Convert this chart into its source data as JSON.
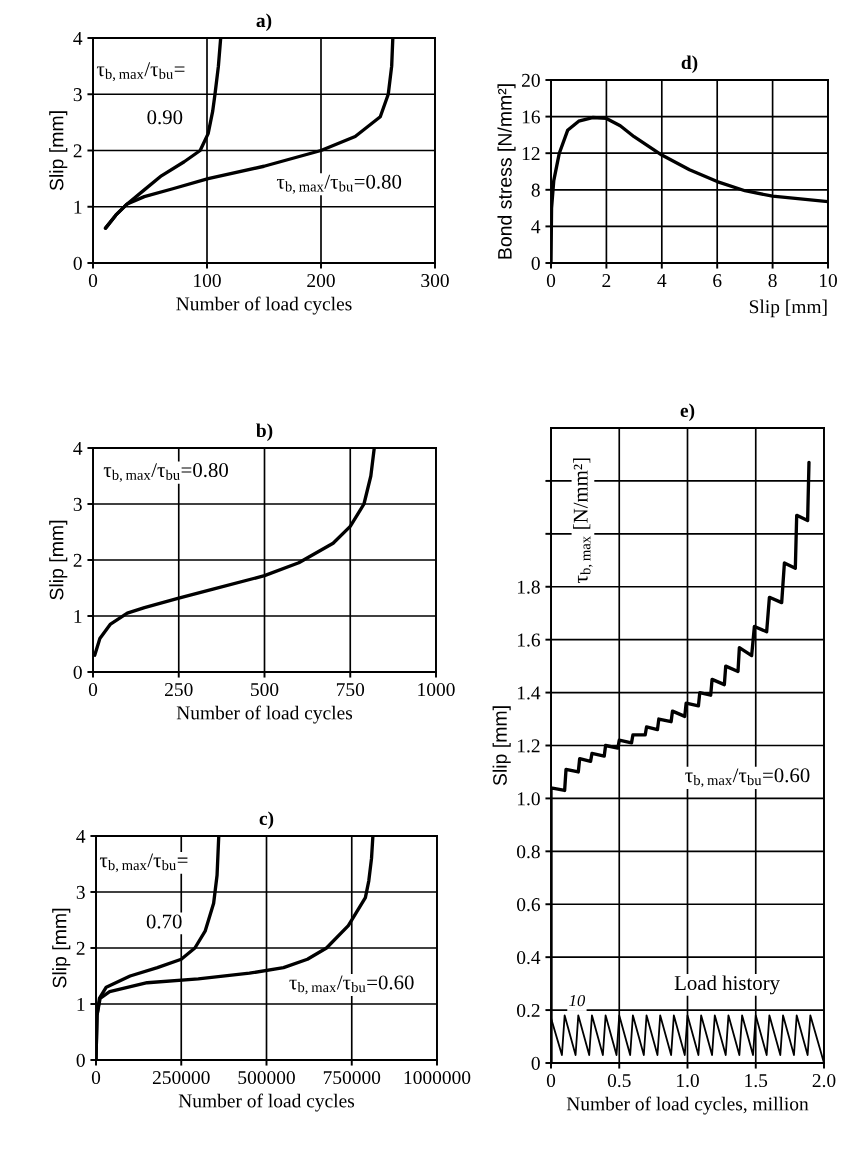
{
  "chart_data": [
    {
      "type": "line",
      "title": "a)",
      "xlabel": "Number of load cycles",
      "ylabel": "Slip [mm]",
      "xlim": [
        0,
        300
      ],
      "xticks": [
        0,
        100,
        200,
        300
      ],
      "ylim": [
        0,
        4
      ],
      "yticks": [
        0,
        1,
        2,
        3,
        4
      ],
      "grid": true,
      "annotations": [
        "τ$_{b,max}$/τ$_{bu}$=",
        "0.90",
        "τ$_{b,max}$/τ$_{bu}$=0.80"
      ],
      "series": [
        {
          "color": "#000000",
          "x": [
            11,
            20,
            30,
            45,
            60,
            80,
            94,
            101,
            105,
            107,
            110,
            112
          ],
          "values": [
            0.62,
            0.85,
            1.05,
            1.3,
            1.55,
            1.8,
            2.0,
            2.3,
            2.7,
            3.0,
            3.5,
            4.0
          ]
        },
        {
          "color": "#000000",
          "x": [
            11,
            20,
            30,
            45,
            70,
            101,
            150,
            200,
            230,
            252,
            259,
            262,
            263
          ],
          "values": [
            0.62,
            0.85,
            1.05,
            1.18,
            1.32,
            1.5,
            1.72,
            2.0,
            2.25,
            2.6,
            3.0,
            3.5,
            4.0
          ]
        }
      ]
    },
    {
      "type": "line",
      "title": "d)",
      "xlabel": "Slip [mm]",
      "ylabel": "Bond stress [N/mm²]",
      "xlim": [
        0,
        10
      ],
      "xticks": [
        0,
        2,
        4,
        6,
        8,
        10
      ],
      "ylim": [
        0,
        20
      ],
      "yticks": [
        0,
        4,
        8,
        12,
        16,
        20
      ],
      "grid": true,
      "series": [
        {
          "color": "#000000",
          "x": [
            0,
            0.02,
            0.1,
            0.3,
            0.6,
            1,
            1.5,
            2,
            2.5,
            3,
            4,
            5,
            6,
            7,
            8,
            9,
            10
          ],
          "values": [
            0,
            6,
            9,
            12,
            14.5,
            15.5,
            15.9,
            15.8,
            15,
            13.8,
            11.8,
            10.2,
            8.9,
            7.9,
            7.3,
            7,
            6.7
          ]
        }
      ]
    },
    {
      "type": "line",
      "title": "b)",
      "xlabel": "Number of load cycles",
      "ylabel": "Slip [mm]",
      "xlim": [
        0,
        1000
      ],
      "xticks": [
        0,
        250,
        500,
        750,
        1000
      ],
      "ylim": [
        0,
        4
      ],
      "yticks": [
        0,
        1,
        2,
        3,
        4
      ],
      "grid": true,
      "annotations": [
        "τ$_{b,max}$/τ$_{bu}$=0.80"
      ],
      "series": [
        {
          "color": "#000000",
          "x": [
            5,
            20,
            50,
            100,
            150,
            250,
            350,
            500,
            600,
            700,
            750,
            790,
            810,
            820
          ],
          "values": [
            0.3,
            0.6,
            0.85,
            1.05,
            1.15,
            1.32,
            1.48,
            1.72,
            1.95,
            2.3,
            2.6,
            3.0,
            3.5,
            4.0
          ]
        }
      ]
    },
    {
      "type": "line",
      "title": "e)",
      "xlabel": "Number of load cycles, million",
      "ylabel": "Slip [mm]",
      "xlim": [
        0,
        2.0
      ],
      "xticks": [
        0,
        0.5,
        {
          "value": 1,
          "label": "1.0"
        },
        1.5,
        {
          "value": 2,
          "label": "2.0"
        }
      ],
      "ylim": [
        0,
        2.4
      ],
      "yticks": [
        0,
        0.2,
        0.4,
        0.6,
        0.8,
        {
          "value": 1,
          "label": "1.0"
        },
        1.2,
        1.4,
        1.6,
        1.8,
        {
          "value": 2,
          "label": null
        },
        {
          "value": 2.2,
          "label": null
        }
      ],
      "grid": true,
      "annotations": [
        "τ$_{b,max}$ [N/mm²]",
        "τ$_{b,max}$/τ$_{bu}$=0.60",
        "Load history",
        "10"
      ],
      "series": [
        {
          "color": "#000000",
          "x": [
            0,
            0,
            0.1,
            0.11,
            0.2,
            0.21,
            0.29,
            0.3,
            0.39,
            0.4,
            0.49,
            0.5,
            0.59,
            0.6,
            0.69,
            0.7,
            0.78,
            0.79,
            0.88,
            0.89,
            0.98,
            0.99,
            1.08,
            1.09,
            1.17,
            1.18,
            1.27,
            1.28,
            1.37,
            1.38,
            1.47,
            1.49,
            1.58,
            1.6,
            1.69,
            1.71,
            1.79,
            1.8,
            1.88,
            1.89
          ],
          "values": [
            0,
            1.04,
            1.03,
            1.11,
            1.1,
            1.15,
            1.14,
            1.17,
            1.16,
            1.2,
            1.19,
            1.22,
            1.21,
            1.24,
            1.24,
            1.27,
            1.26,
            1.3,
            1.29,
            1.33,
            1.31,
            1.36,
            1.35,
            1.4,
            1.39,
            1.45,
            1.43,
            1.5,
            1.48,
            1.57,
            1.54,
            1.65,
            1.63,
            1.76,
            1.74,
            1.89,
            1.87,
            2.07,
            2.05,
            2.27
          ]
        },
        {
          "color": "#000000",
          "x": [
            0,
            0.08,
            0.1,
            0.18,
            0.2,
            0.28,
            0.3,
            0.38,
            0.4,
            0.48,
            0.5,
            0.58,
            0.6,
            0.68,
            0.7,
            0.78,
            0.8,
            0.88,
            0.9,
            0.98,
            1.0,
            1.08,
            1.1,
            1.18,
            1.2,
            1.28,
            1.3,
            1.38,
            1.4,
            1.48,
            1.5,
            1.58,
            1.6,
            1.68,
            1.7,
            1.78,
            1.8,
            1.88,
            1.9,
            2.0
          ],
          "values": [
            0.17,
            0.03,
            0.18,
            0.03,
            0.18,
            0.03,
            0.18,
            0.03,
            0.18,
            0.03,
            0.18,
            0.03,
            0.18,
            0.03,
            0.18,
            0.03,
            0.18,
            0.03,
            0.18,
            0.03,
            0.18,
            0.03,
            0.18,
            0.03,
            0.18,
            0.03,
            0.18,
            0.03,
            0.18,
            0.03,
            0.18,
            0.03,
            0.18,
            0.03,
            0.18,
            0.03,
            0.18,
            0.03,
            0.18,
            0.0
          ]
        }
      ]
    },
    {
      "type": "line",
      "title": "c)",
      "xlabel": "Number of load cycles",
      "ylabel": "Slip [mm]",
      "xlim": [
        0,
        1000000
      ],
      "xticks": [
        0,
        250000,
        500000,
        750000,
        1000000
      ],
      "ylim": [
        0,
        4
      ],
      "yticks": [
        0,
        1,
        2,
        3,
        4
      ],
      "grid": true,
      "annotations": [
        "τ$_{b,max}$/τ$_{bu}$=",
        "0.70",
        "τ$_{b,max}$/τ$_{bu}$=0.60"
      ],
      "series": [
        {
          "color": "#000000",
          "x": [
            0,
            3000,
            10000,
            30000,
            100000,
            180000,
            250000,
            290000,
            320000,
            345000,
            355000,
            360000
          ],
          "values": [
            0,
            0.8,
            1.1,
            1.3,
            1.5,
            1.65,
            1.8,
            2.0,
            2.3,
            2.8,
            3.3,
            4.0
          ]
        },
        {
          "color": "#000000",
          "x": [
            0,
            3000,
            12000,
            40000,
            150000,
            300000,
            450000,
            550000,
            620000,
            676000,
            740000,
            790000,
            800000,
            808000,
            812000
          ],
          "values": [
            0,
            0.8,
            1.1,
            1.22,
            1.38,
            1.45,
            1.55,
            1.65,
            1.8,
            2.0,
            2.4,
            2.9,
            3.2,
            3.6,
            4.0
          ]
        }
      ]
    }
  ]
}
